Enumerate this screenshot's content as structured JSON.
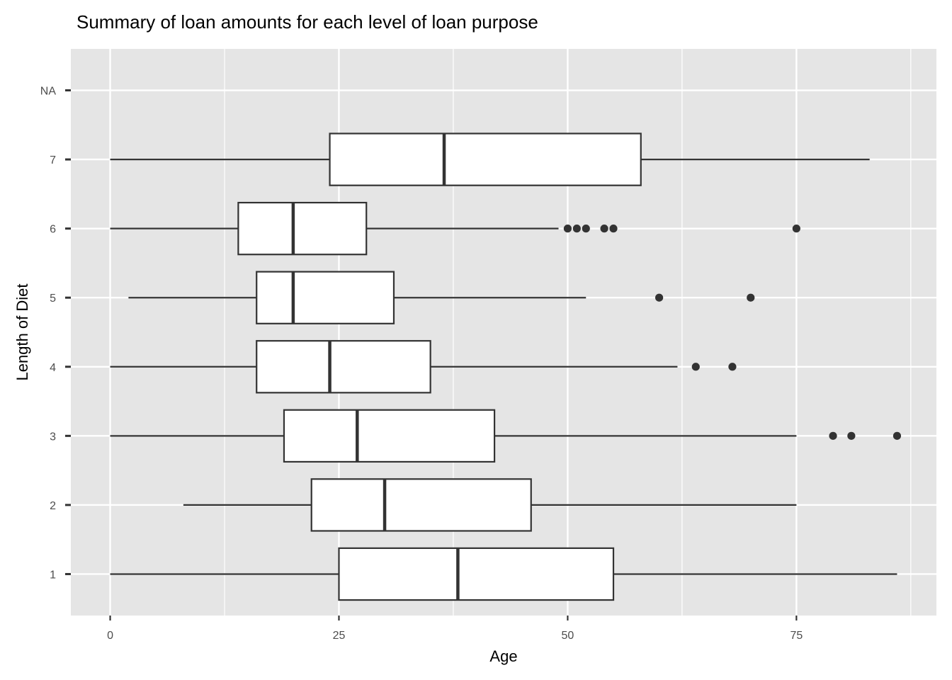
{
  "chart_data": {
    "type": "boxplot",
    "orientation": "horizontal",
    "title": "Summary of loan amounts for each level of loan purpose",
    "xlabel": "Age",
    "ylabel": "Length of Diet",
    "xlim": [
      -4.3,
      90.3
    ],
    "x_ticks": [
      0,
      25,
      50,
      75
    ],
    "x_tick_labels": [
      "0",
      "25",
      "50",
      "75"
    ],
    "categories": [
      "1",
      "2",
      "3",
      "4",
      "5",
      "6",
      "7",
      "NA"
    ],
    "boxes": [
      {
        "category": "1",
        "whisker_low": 0,
        "q1": 25,
        "median": 38,
        "q3": 55,
        "whisker_high": 86,
        "outliers": []
      },
      {
        "category": "2",
        "whisker_low": 8,
        "q1": 22,
        "median": 30,
        "q3": 46,
        "whisker_high": 75,
        "outliers": []
      },
      {
        "category": "3",
        "whisker_low": 0,
        "q1": 19,
        "median": 27,
        "q3": 42,
        "whisker_high": 75,
        "outliers": [
          79,
          81,
          86
        ]
      },
      {
        "category": "4",
        "whisker_low": 0,
        "q1": 16,
        "median": 24,
        "q3": 35,
        "whisker_high": 62,
        "outliers": [
          64,
          68
        ]
      },
      {
        "category": "5",
        "whisker_low": 2,
        "q1": 16,
        "median": 20,
        "q3": 31,
        "whisker_high": 52,
        "outliers": [
          60,
          70
        ]
      },
      {
        "category": "6",
        "whisker_low": 0,
        "q1": 14,
        "median": 20,
        "q3": 28,
        "whisker_high": 49,
        "outliers": [
          50,
          51,
          52,
          54,
          55,
          75
        ]
      },
      {
        "category": "7",
        "whisker_low": 0,
        "q1": 24,
        "median": 36.5,
        "q3": 58,
        "whisker_high": 83,
        "outliers": []
      }
    ],
    "panel_background": "#e5e5e5",
    "grid": true,
    "legend": "none"
  }
}
